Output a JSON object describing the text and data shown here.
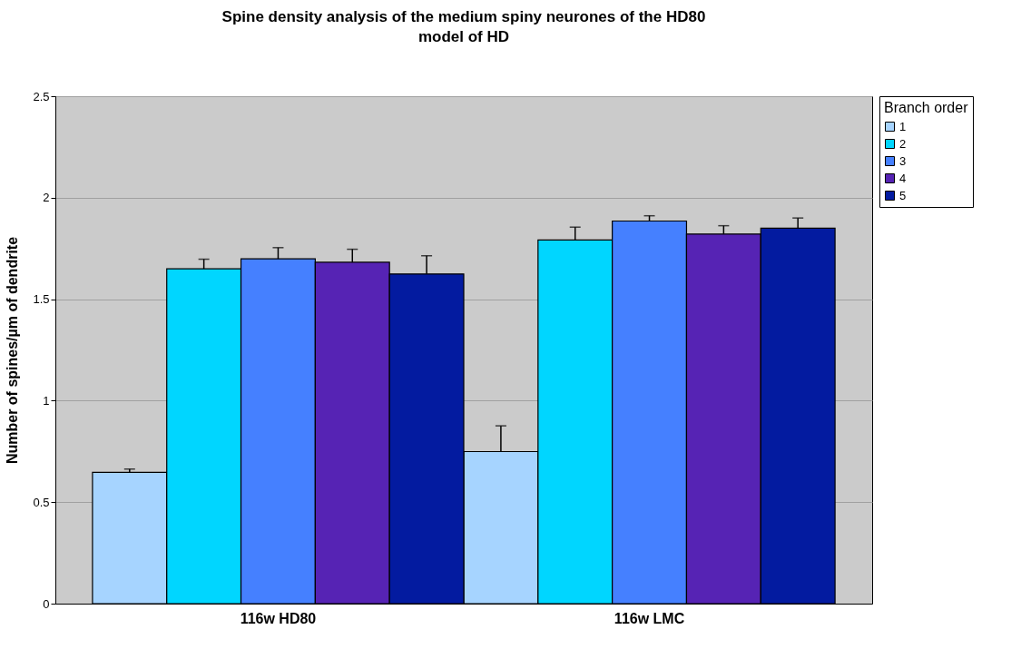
{
  "chart_data": {
    "type": "bar",
    "title": "Spine density analysis of the medium spiny neurones of the HD80 model of HD",
    "ylabel": "Number of spines/µm of dendrite",
    "legend_title": "Branch order",
    "categories": [
      "116w HD80",
      "116w LMC"
    ],
    "series": [
      {
        "name": "1",
        "color": "#a6d4ff",
        "values": [
          0.647,
          0.749
        ],
        "errors": [
          [
            0.647,
            0.663
          ],
          [
            0.749,
            0.876
          ]
        ]
      },
      {
        "name": "2",
        "color": "#00d6ff",
        "values": [
          1.65,
          1.792
        ],
        "errors": [
          [
            1.65,
            1.697
          ],
          [
            1.792,
            1.855
          ]
        ]
      },
      {
        "name": "3",
        "color": "#4580ff",
        "values": [
          1.699,
          1.885
        ],
        "errors": [
          [
            1.699,
            1.754
          ],
          [
            1.885,
            1.911
          ]
        ]
      },
      {
        "name": "4",
        "color": "#5623b4",
        "values": [
          1.682,
          1.821
        ],
        "errors": [
          [
            1.682,
            1.746
          ],
          [
            1.821,
            1.862
          ]
        ]
      },
      {
        "name": "5",
        "color": "#031ba0",
        "values": [
          1.624,
          1.85
        ],
        "errors": [
          [
            1.624,
            1.714
          ],
          [
            1.85,
            1.9
          ]
        ]
      }
    ],
    "ylim": [
      0,
      2.5
    ],
    "yticks": [
      0,
      0.5,
      1,
      1.5,
      2,
      2.5
    ],
    "grid": "y",
    "legend": "right"
  }
}
